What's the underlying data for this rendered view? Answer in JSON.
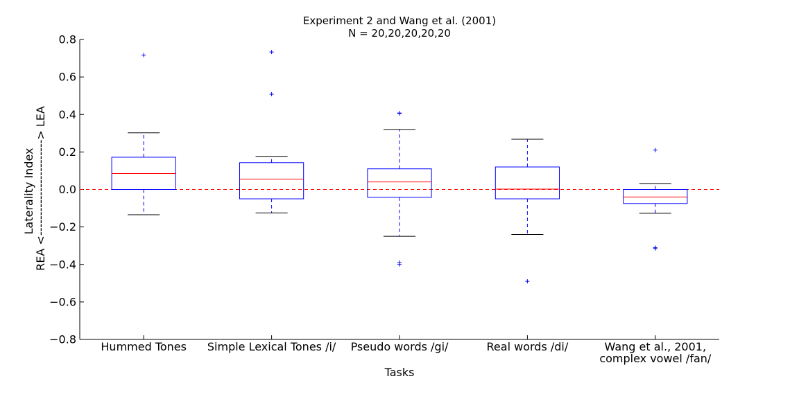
{
  "chart_data": {
    "type": "box",
    "title": "Experiment 2 and Wang et al. (2001)",
    "subtitle": "N = 20,20,20,20,20",
    "xlabel": "Tasks",
    "ylabel": "REA <------------------------> LEA",
    "ylabel_top": "Laterality Index",
    "ylim": [
      -0.8,
      0.8
    ],
    "yticks": [
      -0.8,
      -0.6,
      -0.4,
      -0.2,
      0.0,
      0.2,
      0.4,
      0.6,
      0.8
    ],
    "ytick_labels": [
      "−0.8",
      "−0.6",
      "−0.4",
      "−0.2",
      "0.0",
      "0.2",
      "0.4",
      "0.6",
      "0.8"
    ],
    "reference_line": 0.0,
    "categories": [
      [
        "Hummed Tones"
      ],
      [
        "Simple Lexical Tones /i/"
      ],
      [
        "Pseudo words /gi/"
      ],
      [
        "Real words /di/"
      ],
      [
        "Wang et al., 2001,",
        "complex vowel /fan/"
      ]
    ],
    "boxes": [
      {
        "whisker_low": -0.135,
        "q1": 0.0,
        "median": 0.085,
        "q3": 0.172,
        "whisker_high": 0.302,
        "outliers": [
          0.717
        ]
      },
      {
        "whisker_low": -0.125,
        "q1": -0.05,
        "median": 0.055,
        "q3": 0.143,
        "whisker_high": 0.177,
        "outliers": [
          0.733,
          0.508
        ]
      },
      {
        "whisker_low": -0.25,
        "q1": -0.042,
        "median": 0.04,
        "q3": 0.11,
        "whisker_high": 0.32,
        "outliers": [
          0.408,
          0.405,
          -0.39,
          -0.4
        ]
      },
      {
        "whisker_low": -0.24,
        "q1": -0.05,
        "median": 0.002,
        "q3": 0.12,
        "whisker_high": 0.268,
        "outliers": [
          -0.49
        ]
      },
      {
        "whisker_low": -0.127,
        "q1": -0.075,
        "median": -0.04,
        "q3": 0.0,
        "whisker_high": 0.032,
        "outliers": [
          0.21,
          -0.31,
          -0.315
        ]
      }
    ],
    "colors": {
      "box": "#0000ff",
      "median": "#ff0000",
      "whisker_cap": "#000000",
      "reference": "#ff0000"
    },
    "grid": false
  }
}
